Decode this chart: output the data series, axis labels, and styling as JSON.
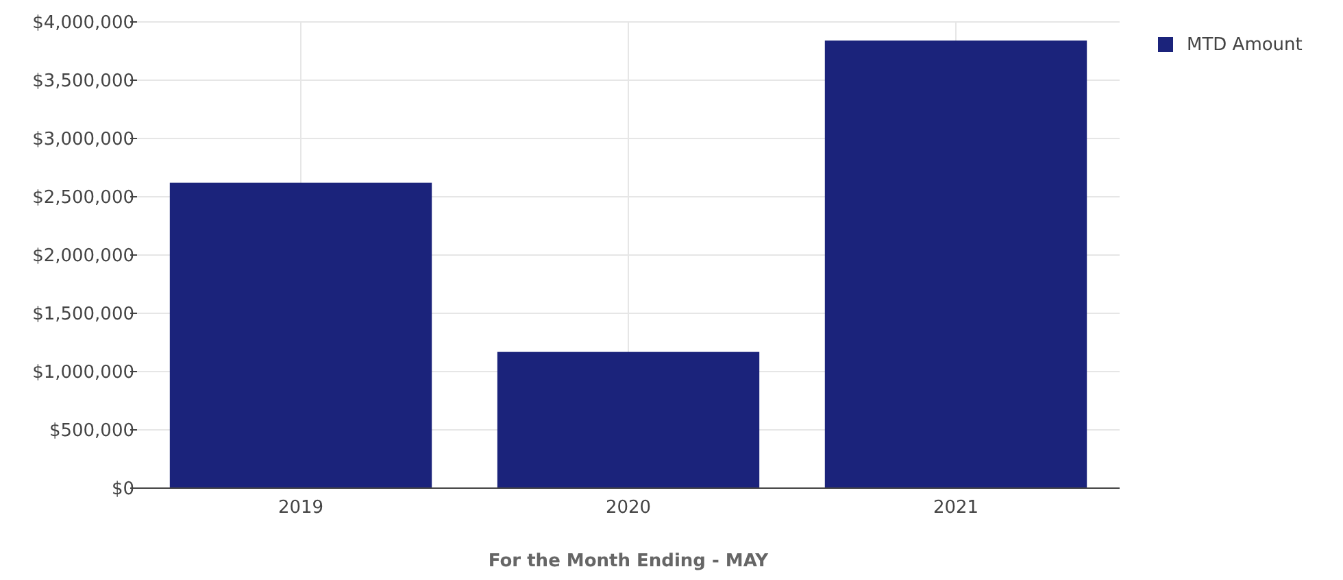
{
  "chart_data": {
    "type": "bar",
    "xlabel": "For the Month Ending - MAY",
    "categories": [
      "2019",
      "2020",
      "2021"
    ],
    "series": [
      {
        "name": "MTD Amount",
        "color": "#1b237b",
        "values": [
          2620000,
          1170000,
          3840000
        ]
      }
    ],
    "ylim": [
      0,
      4000000
    ],
    "yticks": [
      {
        "value": 0,
        "label": "$0"
      },
      {
        "value": 500000,
        "label": "$500,000"
      },
      {
        "value": 1000000,
        "label": "$1,000,000"
      },
      {
        "value": 1500000,
        "label": "$1,500,000"
      },
      {
        "value": 2000000,
        "label": "$2,000,000"
      },
      {
        "value": 2500000,
        "label": "$2,500,000"
      },
      {
        "value": 3000000,
        "label": "$3,000,000"
      },
      {
        "value": 3500000,
        "label": "$3,500,000"
      },
      {
        "value": 4000000,
        "label": "$4,000,000"
      }
    ],
    "grid": true,
    "legend": "top right"
  }
}
